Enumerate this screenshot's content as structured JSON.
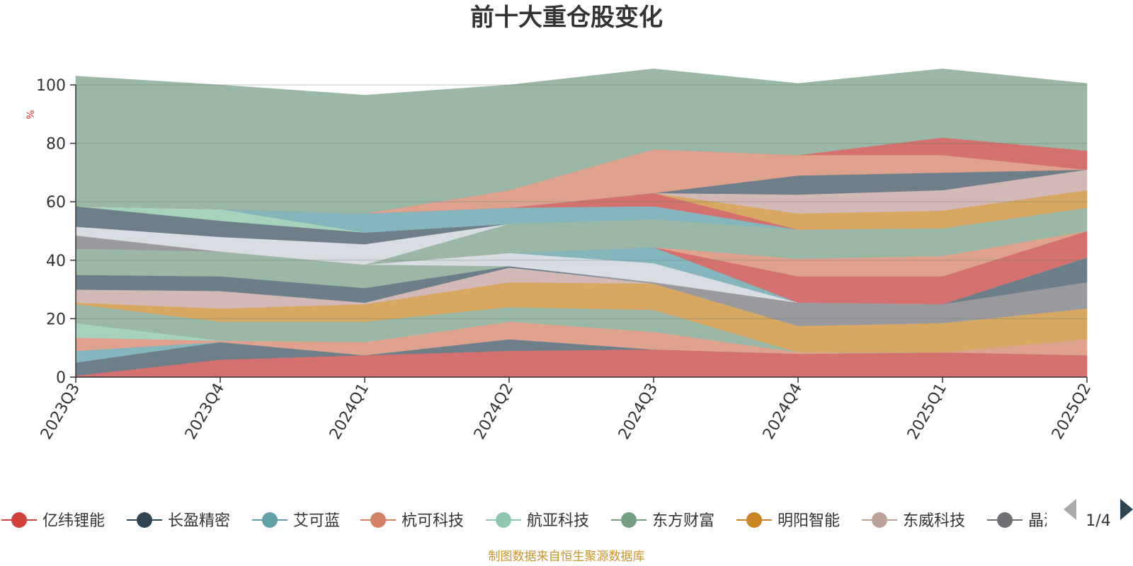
{
  "chart_data": {
    "type": "area",
    "stacked": true,
    "title": "前十大重仓股变化",
    "ylabel": "%",
    "ylim": [
      0,
      100
    ],
    "y_ticks": [
      "0",
      "20",
      "40",
      "60",
      "80",
      "100"
    ],
    "grid": true,
    "categories": [
      "2023Q3",
      "2023Q4",
      "2024Q1",
      "2024Q2",
      "2024Q3",
      "2024Q4",
      "2025Q1",
      "2025Q2"
    ],
    "series": [
      {
        "name": "亿纬锂能",
        "color": "#d4706e",
        "values": [
          0.5,
          6,
          7.5,
          9,
          9.5,
          8,
          8.5,
          7.5
        ]
      },
      {
        "name": "长盈精密",
        "color": "#6e7f8a",
        "values": [
          4.5,
          6,
          0,
          4,
          0,
          0,
          0,
          0
        ]
      },
      {
        "name": "艾可蓝",
        "color": "#85b5bd",
        "values": [
          4,
          0,
          0,
          0,
          0,
          0,
          0,
          0
        ]
      },
      {
        "name": "杭可科技",
        "color": "#dfa28f",
        "values": [
          4.5,
          0.5,
          4.5,
          6,
          6,
          0.5,
          0,
          5.5
        ]
      },
      {
        "name": "航亚科技",
        "color": "#a6d2bc",
        "values": [
          5,
          0,
          0,
          0,
          0,
          0,
          0,
          0
        ]
      },
      {
        "name": "东方财富",
        "color": "#9bb8a6",
        "values": [
          6.5,
          6.5,
          7,
          5,
          7.5,
          0,
          0,
          0
        ]
      },
      {
        "name": "明阳智能",
        "color": "#d8a762",
        "values": [
          0.5,
          4.5,
          6,
          8.5,
          9,
          9,
          10,
          10.5
        ]
      },
      {
        "name": "东威科技",
        "color": "#d2b9b5",
        "values": [
          4.5,
          6,
          0.5,
          5,
          0,
          0,
          0,
          0
        ]
      },
      {
        "name": "晶澳科技",
        "color": "#9a9a9e",
        "values": [
          0,
          0,
          0,
          0,
          0.5,
          8,
          6.5,
          9
        ]
      },
      {
        "name": "",
        "color": "#6d7e8b",
        "values": [
          5,
          5,
          5,
          0.5,
          0,
          0,
          0,
          8.5
        ]
      },
      {
        "name": "",
        "color": "#9bb8a6",
        "values": [
          9,
          8.5,
          8,
          0,
          0,
          0,
          0,
          0
        ]
      },
      {
        "name": "",
        "color": "#9a9a9e",
        "values": [
          4.5,
          0,
          0,
          0,
          0,
          0,
          0,
          0
        ]
      },
      {
        "name": "",
        "color": "#d8dde3",
        "values": [
          0,
          0,
          0,
          4.5,
          6.5,
          0,
          0,
          0
        ]
      },
      {
        "name": "",
        "color": "#85b5bd",
        "values": [
          0,
          0,
          0,
          0,
          5.5,
          0,
          0,
          0
        ]
      },
      {
        "name": "",
        "color": "#d4706e",
        "values": [
          0,
          0,
          0,
          0,
          0,
          9,
          9.5,
          9
        ]
      },
      {
        "name": "",
        "color": "#dfa28f",
        "values": [
          0,
          0,
          0,
          0,
          0,
          6,
          7,
          0
        ]
      },
      {
        "name": "",
        "color": "#9bb8a6",
        "values": [
          0,
          0,
          0,
          10,
          9.5,
          10,
          9.5,
          8
        ]
      },
      {
        "name": "",
        "color": "#d8dde3",
        "values": [
          3,
          5,
          7,
          0,
          0,
          0,
          0,
          0
        ]
      },
      {
        "name": "",
        "color": "#6e7f8a",
        "values": [
          7,
          5.5,
          4,
          0,
          0,
          0,
          0,
          0
        ]
      },
      {
        "name": "",
        "color": "#a6d2bc",
        "values": [
          0,
          4,
          0,
          0,
          0,
          0,
          0,
          0
        ]
      },
      {
        "name": "",
        "color": "#85b5bd",
        "values": [
          0,
          0,
          6.5,
          5.5,
          4.5,
          0,
          0,
          0
        ]
      },
      {
        "name": "",
        "color": "#d4706e",
        "values": [
          0,
          0,
          0,
          0,
          4.5,
          0,
          0,
          0
        ]
      },
      {
        "name": "",
        "color": "#d8a762",
        "values": [
          0,
          0,
          0,
          0,
          0,
          5.5,
          6,
          6
        ]
      },
      {
        "name": "",
        "color": "#d2b9b5",
        "values": [
          0,
          0,
          0,
          0,
          0,
          6.5,
          7,
          7
        ]
      },
      {
        "name": "",
        "color": "#6e7f8a",
        "values": [
          0,
          0,
          0,
          0,
          0,
          6.5,
          6,
          0
        ]
      },
      {
        "name": "",
        "color": "#dfa28f",
        "values": [
          0,
          0,
          0,
          6,
          15,
          7,
          6,
          0
        ]
      },
      {
        "name": "",
        "color": "#d4706e",
        "values": [
          0,
          0,
          0,
          0,
          0,
          0,
          6,
          6.5
        ]
      },
      {
        "name": "",
        "color": "#9bb8a6",
        "values": [
          44.5,
          42.5,
          40.5,
          36,
          27.5,
          24.5,
          23.5,
          23
        ]
      }
    ]
  },
  "legend": {
    "items": [
      {
        "label": "亿纬锂能",
        "color": "#d0403c"
      },
      {
        "label": "长盈精密",
        "color": "#2f4554"
      },
      {
        "label": "艾可蓝",
        "color": "#61a0a8"
      },
      {
        "label": "杭可科技",
        "color": "#d48265"
      },
      {
        "label": "航亚科技",
        "color": "#91c7ae"
      },
      {
        "label": "东方财富",
        "color": "#749f83"
      },
      {
        "label": "明阳智能",
        "color": "#ca8622"
      },
      {
        "label": "东威科技",
        "color": "#bda29a"
      },
      {
        "label": "晶澳科技",
        "color": "#6e7074"
      }
    ],
    "page": "1/4"
  },
  "source": "制图数据来自恒生聚源数据库"
}
